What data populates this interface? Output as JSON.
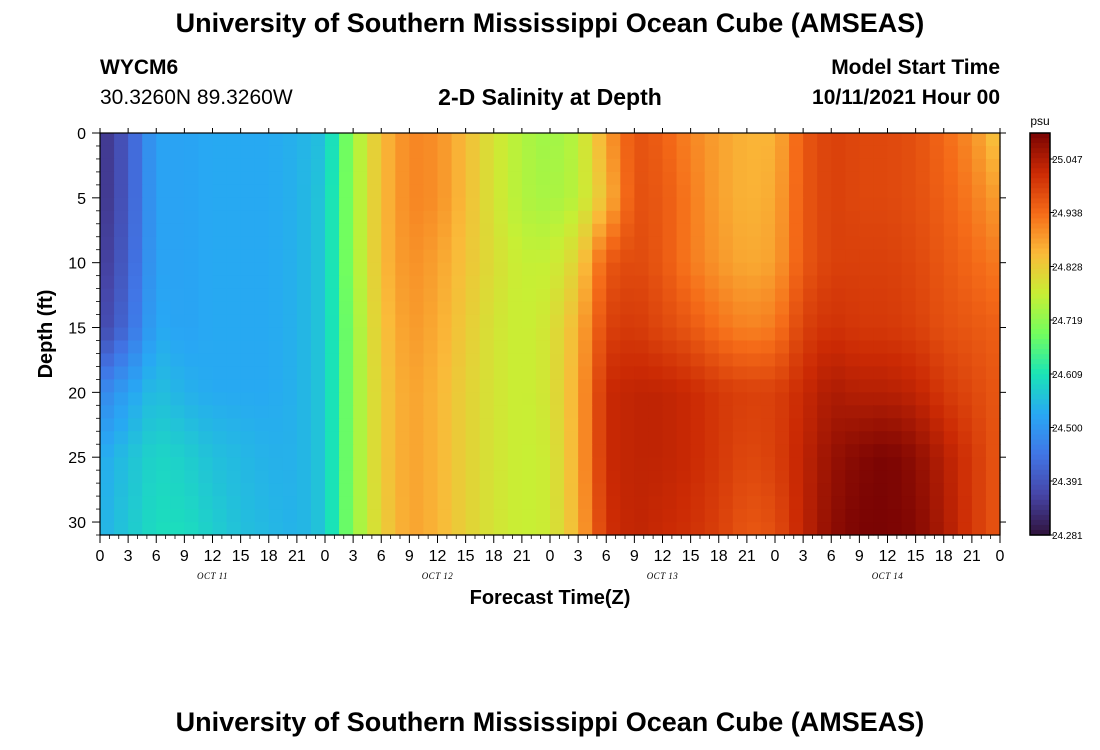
{
  "header": {
    "title": "University of Southern Mississippi Ocean Cube (AMSEAS)",
    "station": "WYCM6",
    "coordinates": "30.3260N  89.3260W",
    "subtitle": "2-D Salinity at Depth",
    "model_start_label": "Model Start Time",
    "model_start_value": "10/11/2021 Hour 00"
  },
  "footer": {
    "title": "University of Southern Mississippi Ocean Cube (AMSEAS)"
  },
  "chart_data": {
    "type": "heatmap",
    "xlabel": "Forecast Time(Z)",
    "ylabel": "Depth (ft)",
    "x_range_hours": [
      0,
      96
    ],
    "ylim": [
      0,
      31
    ],
    "y_inverted": true,
    "x_tick_labels": [
      "0",
      "3",
      "6",
      "9",
      "12",
      "15",
      "18",
      "21",
      "0",
      "3",
      "6",
      "9",
      "12",
      "15",
      "18",
      "21",
      "0",
      "3",
      "6",
      "9",
      "12",
      "15",
      "18",
      "21",
      "0",
      "3",
      "6",
      "9",
      "12",
      "15",
      "18",
      "21",
      "0"
    ],
    "y_tick_labels": [
      "0",
      "5",
      "10",
      "15",
      "20",
      "25",
      "30"
    ],
    "day_labels": [
      "OCT 11",
      "OCT 12",
      "OCT 13",
      "OCT 14"
    ],
    "colorbar": {
      "unit": "psu",
      "min": 24.281,
      "max": 25.1,
      "tick_labels": [
        "25.047",
        "24.938",
        "24.828",
        "24.719",
        "24.609",
        "24.500",
        "24.391",
        "24.281"
      ]
    },
    "depths": [
      0,
      5,
      10,
      15,
      20,
      25,
      31
    ],
    "hours": [
      0,
      3,
      6,
      9,
      12,
      15,
      18,
      21,
      24,
      27,
      30,
      33,
      36,
      39,
      42,
      45,
      48,
      51,
      54,
      57,
      60,
      63,
      66,
      69,
      72,
      75,
      78,
      81,
      84,
      87,
      90,
      93,
      96
    ],
    "values": [
      [
        24.33,
        24.4,
        24.52,
        24.52,
        24.53,
        24.53,
        24.53,
        24.54,
        24.56,
        24.73,
        24.85,
        24.91,
        24.9,
        24.85,
        24.79,
        24.75,
        24.73,
        24.76,
        24.88,
        24.97,
        24.95,
        24.91,
        24.88,
        24.86,
        24.86,
        24.96,
        24.99,
        24.98,
        24.98,
        24.97,
        24.94,
        24.9,
        24.83
      ],
      [
        24.33,
        24.4,
        24.52,
        24.52,
        24.53,
        24.53,
        24.53,
        24.54,
        24.57,
        24.73,
        24.85,
        24.91,
        24.9,
        24.85,
        24.79,
        24.75,
        24.74,
        24.76,
        24.85,
        24.97,
        24.96,
        24.92,
        24.88,
        24.86,
        24.87,
        24.96,
        24.99,
        24.98,
        24.98,
        24.97,
        24.95,
        24.92,
        24.88
      ],
      [
        24.34,
        24.41,
        24.52,
        24.52,
        24.53,
        24.53,
        24.53,
        24.54,
        24.57,
        24.73,
        24.85,
        24.9,
        24.88,
        24.84,
        24.8,
        24.77,
        24.77,
        24.82,
        24.96,
        24.98,
        24.96,
        24.92,
        24.89,
        24.87,
        24.88,
        24.96,
        24.99,
        24.99,
        24.99,
        24.98,
        24.96,
        24.94,
        24.92
      ],
      [
        24.36,
        24.43,
        24.53,
        24.52,
        24.53,
        24.53,
        24.53,
        24.54,
        24.57,
        24.72,
        24.84,
        24.89,
        24.87,
        24.83,
        24.79,
        24.77,
        24.79,
        24.86,
        24.99,
        25.0,
        24.98,
        24.96,
        24.93,
        24.91,
        24.92,
        24.99,
        25.01,
        25.0,
        25.0,
        24.99,
        24.97,
        24.96,
        24.95
      ],
      [
        24.47,
        24.52,
        24.56,
        24.54,
        24.53,
        24.53,
        24.53,
        24.54,
        24.57,
        24.72,
        24.83,
        24.88,
        24.86,
        24.82,
        24.79,
        24.77,
        24.79,
        24.87,
        25.02,
        25.03,
        25.03,
        25.02,
        25.0,
        24.99,
        24.99,
        25.02,
        25.05,
        25.04,
        25.04,
        25.03,
        25.0,
        24.98,
        24.96
      ],
      [
        24.53,
        24.56,
        24.59,
        24.58,
        24.56,
        24.55,
        24.54,
        24.54,
        24.57,
        24.72,
        24.83,
        24.88,
        24.86,
        24.82,
        24.79,
        24.77,
        24.78,
        24.87,
        25.02,
        25.03,
        25.03,
        25.02,
        25.0,
        24.98,
        24.99,
        25.03,
        25.07,
        25.09,
        25.1,
        25.08,
        25.04,
        25.0,
        24.96
      ],
      [
        24.54,
        24.57,
        24.6,
        24.6,
        24.58,
        24.56,
        24.55,
        24.54,
        24.57,
        24.72,
        24.82,
        24.88,
        24.86,
        24.82,
        24.79,
        24.77,
        24.78,
        24.86,
        25.01,
        25.03,
        25.02,
        25.01,
        24.99,
        24.96,
        24.97,
        25.03,
        25.08,
        25.1,
        25.1,
        25.09,
        25.05,
        25.0,
        24.96
      ]
    ]
  }
}
